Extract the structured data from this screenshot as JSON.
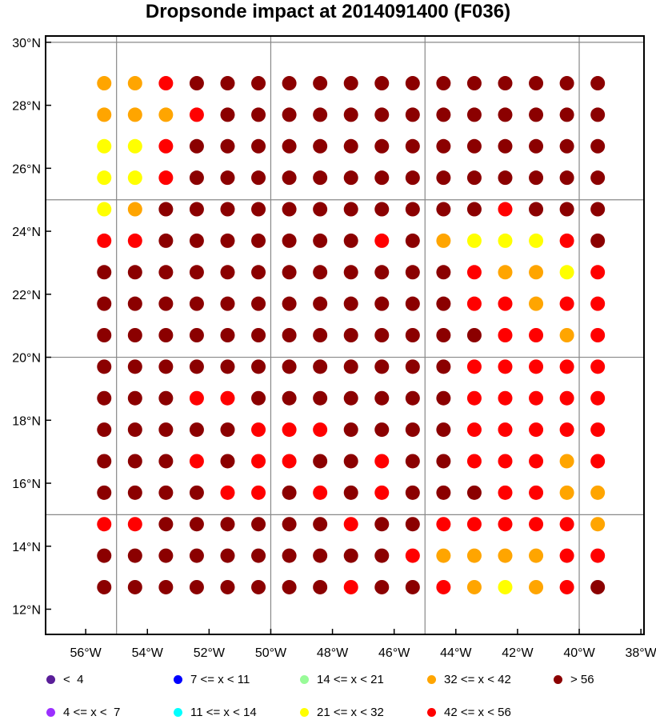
{
  "title": "Dropsonde impact at 2014091400 (F036)",
  "map": {
    "lon_range": [
      -57.3,
      -37.9
    ],
    "lat_range": [
      11.2,
      30.2
    ],
    "x_ticks": [
      "56°W",
      "54°W",
      "52°W",
      "50°W",
      "48°W",
      "46°W",
      "44°W",
      "42°W",
      "40°W",
      "38°W"
    ],
    "x_tick_values": [
      -56,
      -54,
      -52,
      -50,
      -48,
      -46,
      -44,
      -42,
      -40,
      -38
    ],
    "y_ticks": [
      "30°N",
      "28°N",
      "26°N",
      "24°N",
      "22°N",
      "20°N",
      "18°N",
      "16°N",
      "14°N",
      "12°N"
    ],
    "y_tick_values": [
      30,
      28,
      26,
      24,
      22,
      20,
      18,
      16,
      14,
      12
    ],
    "grid_lons": [
      -55,
      -50,
      -45,
      -40
    ],
    "grid_lats": [
      30,
      25,
      20,
      15
    ],
    "point_lons": [
      -55.4,
      -54.4,
      -53.4,
      -52.4,
      -51.4,
      -50.4,
      -49.4,
      -48.4,
      -47.4,
      -46.4,
      -45.4,
      -44.4,
      -43.4,
      -42.4,
      -41.4,
      -40.4,
      -39.4
    ],
    "point_lats": [
      28.7,
      27.7,
      26.7,
      25.7,
      24.7,
      23.7,
      22.7,
      21.7,
      20.7,
      19.7,
      18.7,
      17.7,
      16.7,
      15.7,
      14.7,
      13.7,
      12.7
    ]
  },
  "colors": {
    "A": "#5a1e99",
    "B": "#9b30ff",
    "C": "#0000ff",
    "D": "#00ffff",
    "E": "#98fb98",
    "F": "#ffff00",
    "G": "#ffa500",
    "H": "#ff0000",
    "I": "#8b0000"
  },
  "chart_data": {
    "type": "scatter",
    "value_classes": {
      "A": "< 4",
      "B": "4 <= x < 7",
      "C": "7 <= x < 11",
      "D": "11 <= x < 14",
      "E": "14 <= x < 21",
      "F": "21 <= x < 32",
      "G": "32 <= x < 42",
      "H": "42 <= x < 56",
      "I": "> 56"
    },
    "rows": [
      "GGHIIIIIIIIIIIIII",
      "GGGHIIIIIIIIIIIII",
      "FFHIIIIIIIIIIIIII",
      "FFHIIIIIIIIIIIIII",
      "FGIIIIIIIIIIIHIII",
      "HHIIIIIIIHIGFFFHI",
      "IIIIIIIIIIIIHGGFH",
      "IIIIIIIIIIIIHHGHH",
      "IIIIIIIIIIIIIHHGH",
      "IIIIIIIIIIIIHHHHH",
      "IIIHHIIIIIIIHHHHH",
      "IIIIIHHHIIIIHHHHH",
      "IIIHIHHIIHIIHHHGH",
      "IIIIHHIHIHIIIHHGG",
      "HHIIIIIIHIIHHHHHG",
      "IIIIIIIIIIHGGGGHH",
      "IIIIIIIIHIIHGFGHI"
    ]
  },
  "legend": [
    {
      "key": "A",
      "label": "<  4"
    },
    {
      "key": "B",
      "label": "4 <= x <  7"
    },
    {
      "key": "C",
      "label": "7 <= x < 11"
    },
    {
      "key": "D",
      "label": "11 <= x < 14"
    },
    {
      "key": "E",
      "label": "14 <= x < 21"
    },
    {
      "key": "F",
      "label": "21 <= x < 32"
    },
    {
      "key": "G",
      "label": "32 <= x < 42"
    },
    {
      "key": "H",
      "label": "42 <= x < 56"
    },
    {
      "key": "I",
      "label": "> 56"
    }
  ]
}
